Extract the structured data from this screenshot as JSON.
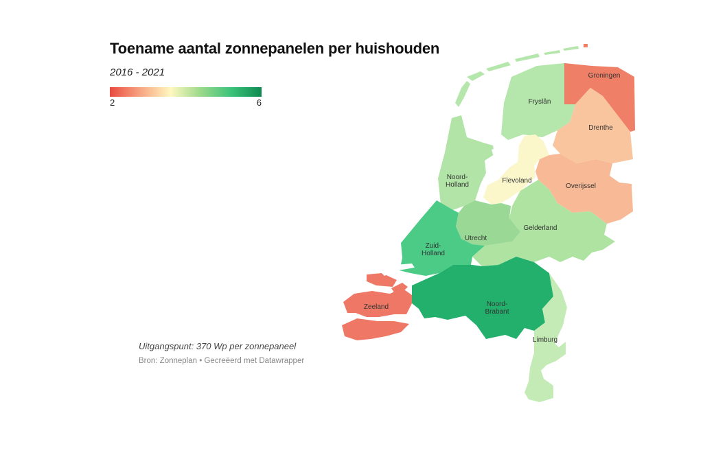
{
  "title": "Toename aantal zonnepanelen per huishouden",
  "subtitle": "2016 - 2021",
  "legend": {
    "min_label": "2",
    "max_label": "6",
    "colors": [
      "#e84a3f",
      "#f7a582",
      "#fff7c0",
      "#9ad98a",
      "#3cc27a",
      "#0e8a50"
    ]
  },
  "note": "Uitgangspunt: 370 Wp per zonnepaneel",
  "source": "Bron: Zonneplan • Gecreëerd met Datawrapper",
  "provinces": {
    "groningen": {
      "name": "Groningen",
      "color": "#ef7f67"
    },
    "fryslan": {
      "name": "Fryslân",
      "color": "#b5e6ab"
    },
    "drenthe": {
      "name": "Drenthe",
      "color": "#f9c59e"
    },
    "noord_holland": {
      "name_1": "Noord-",
      "name_2": "Holland",
      "color": "#b1e4a6"
    },
    "flevoland": {
      "name": "Flevoland",
      "color": "#fbf7cb"
    },
    "overijssel": {
      "name": "Overijssel",
      "color": "#f8ba96"
    },
    "gelderland": {
      "name": "Gelderland",
      "color": "#aee3a2"
    },
    "utrecht": {
      "name": "Utrecht",
      "color": "#9ad895"
    },
    "zuid_holland": {
      "name_1": "Zuid-",
      "name_2": "Holland",
      "color": "#4ccb87"
    },
    "noord_brabant": {
      "name_1": "Noord-",
      "name_2": "Brabant",
      "color": "#22b06c"
    },
    "zeeland": {
      "name": "Zeeland",
      "color": "#ee7865"
    },
    "limburg": {
      "name": "Limburg",
      "color": "#c4ebb5"
    }
  }
}
